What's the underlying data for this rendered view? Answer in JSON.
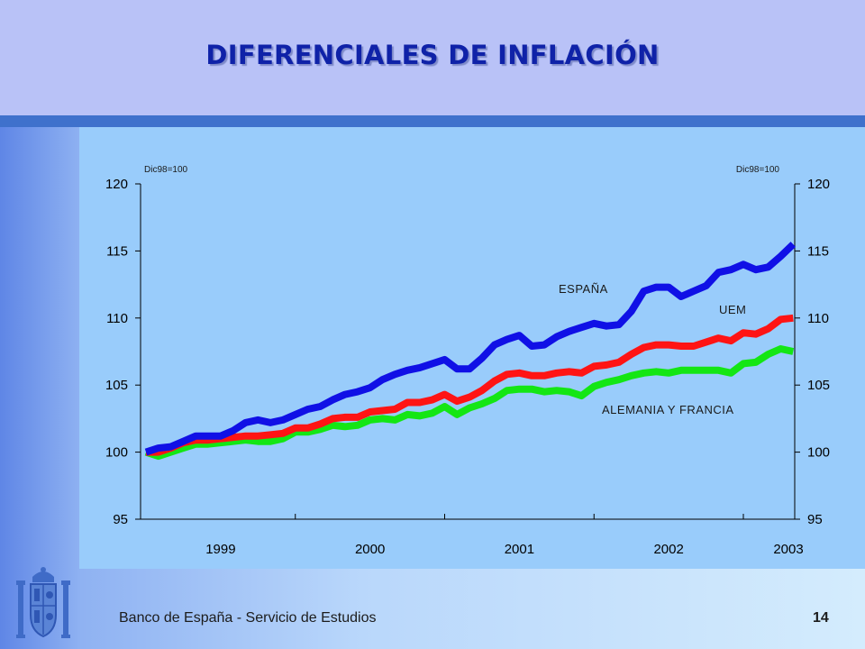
{
  "slide": {
    "title": "DIFERENCIALES DE INFLACIÓN",
    "footer": "Banco de España - Servicio de Estudios",
    "page_number": "14",
    "colors": {
      "header": "#b9c2f7",
      "header_band": "#3f71cc",
      "title": "#0f22a8",
      "chart_background": "#99ccfb"
    },
    "logo_icon": "coat-of-arms-icon"
  },
  "chart_data": {
    "type": "line",
    "title": "",
    "xlabel": "",
    "ylabel": "",
    "base_note_left": "Dic98=100",
    "base_note_right": "Dic98=100",
    "ylim": [
      95,
      120
    ],
    "yticks": [
      "120",
      "115",
      "110",
      "105",
      "100",
      "95"
    ],
    "y_axis": "left-and-right",
    "xticks": [
      "1999",
      "2000",
      "2001",
      "2002",
      "2003"
    ],
    "x_start": "1998-12",
    "grid": false,
    "series": [
      {
        "name": "ESPAÑA",
        "color": "#1010e6",
        "values": [
          100.0,
          100.3,
          100.4,
          100.8,
          101.2,
          101.2,
          101.2,
          101.6,
          102.2,
          102.4,
          102.2,
          102.4,
          102.8,
          103.2,
          103.4,
          103.9,
          104.3,
          104.5,
          104.8,
          105.4,
          105.8,
          106.1,
          106.3,
          106.6,
          106.9,
          106.2,
          106.2,
          107.0,
          108.0,
          108.4,
          108.7,
          107.9,
          108.0,
          108.6,
          109.0,
          109.3,
          109.6,
          109.4,
          109.5,
          110.5,
          112.0,
          112.3,
          112.3,
          111.6,
          112.0,
          112.4,
          113.4,
          113.6,
          114.0,
          113.6,
          113.8,
          114.6,
          115.5
        ]
      },
      {
        "name": "UEM",
        "color": "#ff1414",
        "values": [
          100.0,
          100.0,
          100.3,
          100.7,
          100.9,
          100.9,
          101.0,
          101.1,
          101.2,
          101.2,
          101.3,
          101.4,
          101.8,
          101.8,
          102.1,
          102.5,
          102.6,
          102.6,
          103.0,
          103.1,
          103.2,
          103.7,
          103.7,
          103.9,
          104.3,
          103.8,
          104.1,
          104.6,
          105.3,
          105.8,
          105.9,
          105.7,
          105.7,
          105.9,
          106.0,
          105.9,
          106.4,
          106.5,
          106.7,
          107.3,
          107.8,
          108.0,
          108.0,
          107.9,
          107.9,
          108.2,
          108.5,
          108.3,
          108.9,
          108.8,
          109.2,
          109.9,
          110.0
        ]
      },
      {
        "name": "ALEMANIA Y FRANCIA",
        "color": "#14e614",
        "values": [
          100.0,
          99.7,
          100.0,
          100.3,
          100.6,
          100.6,
          100.7,
          100.8,
          100.9,
          100.8,
          100.8,
          101.0,
          101.5,
          101.5,
          101.7,
          102.0,
          101.9,
          102.0,
          102.4,
          102.5,
          102.4,
          102.8,
          102.7,
          102.9,
          103.4,
          102.8,
          103.3,
          103.6,
          104.0,
          104.6,
          104.7,
          104.7,
          104.5,
          104.6,
          104.5,
          104.2,
          104.9,
          105.2,
          105.4,
          105.7,
          105.9,
          106.0,
          105.9,
          106.1,
          106.1,
          106.1,
          106.1,
          105.9,
          106.6,
          106.7,
          107.3,
          107.7,
          107.5
        ]
      }
    ]
  }
}
